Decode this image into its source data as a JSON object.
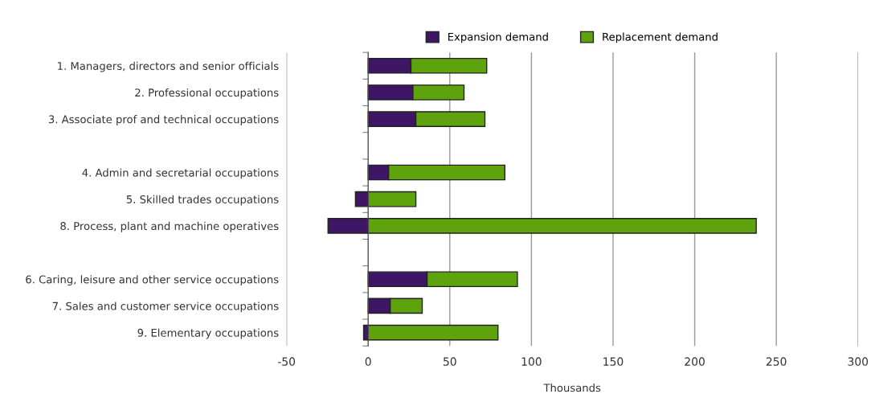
{
  "chart_data": {
    "type": "bar",
    "orientation": "horizontal",
    "stacked": true,
    "xlabel": "Thousands",
    "categories": [
      "1. Managers, directors and senior officials",
      "2. Professional occupations",
      "3. Associate prof and technical occupations",
      null,
      "4. Admin and secretarial occupations",
      "5. Skilled trades occupations",
      "8. Process, plant and machine operatives",
      null,
      "6. Caring, leisure and other service occupations",
      "7. Sales and customer service occupations",
      "9. Elementary occupations"
    ],
    "series": [
      {
        "name": "Expansion demand",
        "color": "#3f1566",
        "values": [
          26.2,
          27.4,
          29.2,
          null,
          12.5,
          -7.8,
          -24.6,
          null,
          36.1,
          13.5,
          -2.8
        ]
      },
      {
        "name": "Replacement demand",
        "color": "#5ea30e",
        "values": [
          46.4,
          31.3,
          42.3,
          null,
          71.2,
          29.2,
          237.7,
          null,
          55.3,
          19.6,
          79.5
        ]
      }
    ],
    "xlim": [
      -50,
      300
    ],
    "xticks": [
      -50,
      0,
      50,
      100,
      150,
      200,
      250,
      300
    ],
    "grid": "x",
    "legend": "top"
  }
}
